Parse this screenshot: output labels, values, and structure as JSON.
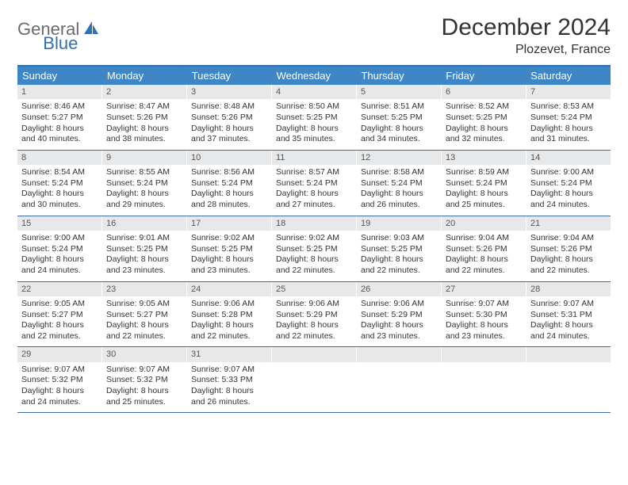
{
  "logo": {
    "part1": "General",
    "part2": "Blue"
  },
  "title": "December 2024",
  "location": "Plozevet, France",
  "colors": {
    "header_bg": "#3f86c7",
    "header_border": "#2f6fb3",
    "week_divider": "#3f6fa0",
    "daynum_bg": "#e7e8e9",
    "text": "#333333",
    "logo_gray": "#6b6b6b",
    "logo_blue": "#2f6fb3"
  },
  "weekdays": [
    "Sunday",
    "Monday",
    "Tuesday",
    "Wednesday",
    "Thursday",
    "Friday",
    "Saturday"
  ],
  "weeks": [
    [
      {
        "n": "1",
        "sunrise": "8:46 AM",
        "sunset": "5:27 PM",
        "dl1": "Daylight: 8 hours",
        "dl2": "and 40 minutes."
      },
      {
        "n": "2",
        "sunrise": "8:47 AM",
        "sunset": "5:26 PM",
        "dl1": "Daylight: 8 hours",
        "dl2": "and 38 minutes."
      },
      {
        "n": "3",
        "sunrise": "8:48 AM",
        "sunset": "5:26 PM",
        "dl1": "Daylight: 8 hours",
        "dl2": "and 37 minutes."
      },
      {
        "n": "4",
        "sunrise": "8:50 AM",
        "sunset": "5:25 PM",
        "dl1": "Daylight: 8 hours",
        "dl2": "and 35 minutes."
      },
      {
        "n": "5",
        "sunrise": "8:51 AM",
        "sunset": "5:25 PM",
        "dl1": "Daylight: 8 hours",
        "dl2": "and 34 minutes."
      },
      {
        "n": "6",
        "sunrise": "8:52 AM",
        "sunset": "5:25 PM",
        "dl1": "Daylight: 8 hours",
        "dl2": "and 32 minutes."
      },
      {
        "n": "7",
        "sunrise": "8:53 AM",
        "sunset": "5:24 PM",
        "dl1": "Daylight: 8 hours",
        "dl2": "and 31 minutes."
      }
    ],
    [
      {
        "n": "8",
        "sunrise": "8:54 AM",
        "sunset": "5:24 PM",
        "dl1": "Daylight: 8 hours",
        "dl2": "and 30 minutes."
      },
      {
        "n": "9",
        "sunrise": "8:55 AM",
        "sunset": "5:24 PM",
        "dl1": "Daylight: 8 hours",
        "dl2": "and 29 minutes."
      },
      {
        "n": "10",
        "sunrise": "8:56 AM",
        "sunset": "5:24 PM",
        "dl1": "Daylight: 8 hours",
        "dl2": "and 28 minutes."
      },
      {
        "n": "11",
        "sunrise": "8:57 AM",
        "sunset": "5:24 PM",
        "dl1": "Daylight: 8 hours",
        "dl2": "and 27 minutes."
      },
      {
        "n": "12",
        "sunrise": "8:58 AM",
        "sunset": "5:24 PM",
        "dl1": "Daylight: 8 hours",
        "dl2": "and 26 minutes."
      },
      {
        "n": "13",
        "sunrise": "8:59 AM",
        "sunset": "5:24 PM",
        "dl1": "Daylight: 8 hours",
        "dl2": "and 25 minutes."
      },
      {
        "n": "14",
        "sunrise": "9:00 AM",
        "sunset": "5:24 PM",
        "dl1": "Daylight: 8 hours",
        "dl2": "and 24 minutes."
      }
    ],
    [
      {
        "n": "15",
        "sunrise": "9:00 AM",
        "sunset": "5:24 PM",
        "dl1": "Daylight: 8 hours",
        "dl2": "and 24 minutes."
      },
      {
        "n": "16",
        "sunrise": "9:01 AM",
        "sunset": "5:25 PM",
        "dl1": "Daylight: 8 hours",
        "dl2": "and 23 minutes."
      },
      {
        "n": "17",
        "sunrise": "9:02 AM",
        "sunset": "5:25 PM",
        "dl1": "Daylight: 8 hours",
        "dl2": "and 23 minutes."
      },
      {
        "n": "18",
        "sunrise": "9:02 AM",
        "sunset": "5:25 PM",
        "dl1": "Daylight: 8 hours",
        "dl2": "and 22 minutes."
      },
      {
        "n": "19",
        "sunrise": "9:03 AM",
        "sunset": "5:25 PM",
        "dl1": "Daylight: 8 hours",
        "dl2": "and 22 minutes."
      },
      {
        "n": "20",
        "sunrise": "9:04 AM",
        "sunset": "5:26 PM",
        "dl1": "Daylight: 8 hours",
        "dl2": "and 22 minutes."
      },
      {
        "n": "21",
        "sunrise": "9:04 AM",
        "sunset": "5:26 PM",
        "dl1": "Daylight: 8 hours",
        "dl2": "and 22 minutes."
      }
    ],
    [
      {
        "n": "22",
        "sunrise": "9:05 AM",
        "sunset": "5:27 PM",
        "dl1": "Daylight: 8 hours",
        "dl2": "and 22 minutes."
      },
      {
        "n": "23",
        "sunrise": "9:05 AM",
        "sunset": "5:27 PM",
        "dl1": "Daylight: 8 hours",
        "dl2": "and 22 minutes."
      },
      {
        "n": "24",
        "sunrise": "9:06 AM",
        "sunset": "5:28 PM",
        "dl1": "Daylight: 8 hours",
        "dl2": "and 22 minutes."
      },
      {
        "n": "25",
        "sunrise": "9:06 AM",
        "sunset": "5:29 PM",
        "dl1": "Daylight: 8 hours",
        "dl2": "and 22 minutes."
      },
      {
        "n": "26",
        "sunrise": "9:06 AM",
        "sunset": "5:29 PM",
        "dl1": "Daylight: 8 hours",
        "dl2": "and 23 minutes."
      },
      {
        "n": "27",
        "sunrise": "9:07 AM",
        "sunset": "5:30 PM",
        "dl1": "Daylight: 8 hours",
        "dl2": "and 23 minutes."
      },
      {
        "n": "28",
        "sunrise": "9:07 AM",
        "sunset": "5:31 PM",
        "dl1": "Daylight: 8 hours",
        "dl2": "and 24 minutes."
      }
    ],
    [
      {
        "n": "29",
        "sunrise": "9:07 AM",
        "sunset": "5:32 PM",
        "dl1": "Daylight: 8 hours",
        "dl2": "and 24 minutes."
      },
      {
        "n": "30",
        "sunrise": "9:07 AM",
        "sunset": "5:32 PM",
        "dl1": "Daylight: 8 hours",
        "dl2": "and 25 minutes."
      },
      {
        "n": "31",
        "sunrise": "9:07 AM",
        "sunset": "5:33 PM",
        "dl1": "Daylight: 8 hours",
        "dl2": "and 26 minutes."
      },
      {
        "empty": true
      },
      {
        "empty": true
      },
      {
        "empty": true
      },
      {
        "empty": true
      }
    ]
  ],
  "labels": {
    "sunrise": "Sunrise:",
    "sunset": "Sunset:"
  }
}
